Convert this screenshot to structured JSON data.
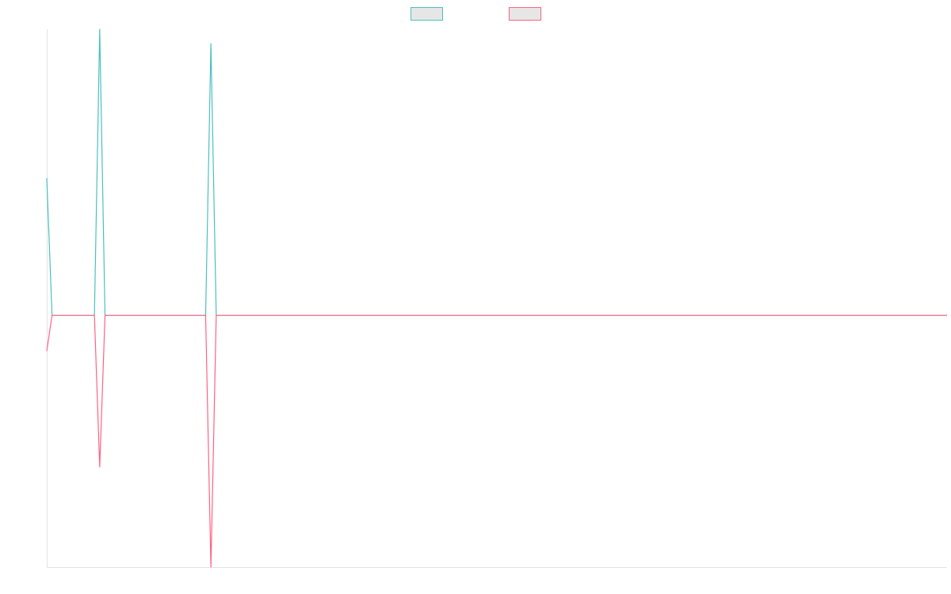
{
  "chart_data": {
    "type": "line",
    "x": [
      0,
      1,
      9,
      10,
      11,
      30,
      31,
      32,
      170
    ],
    "xlim": [
      0,
      170
    ],
    "ylim": [
      -88,
      100
    ],
    "legend": "top",
    "series": [
      {
        "color": "#4bc0c0",
        "values": [
          48,
          0,
          0,
          100,
          0,
          0,
          95,
          0,
          0
        ]
      },
      {
        "color": "#ff6384",
        "values": [
          -12.5,
          0,
          0,
          -53,
          0,
          0,
          -88,
          0,
          0
        ]
      }
    ]
  }
}
